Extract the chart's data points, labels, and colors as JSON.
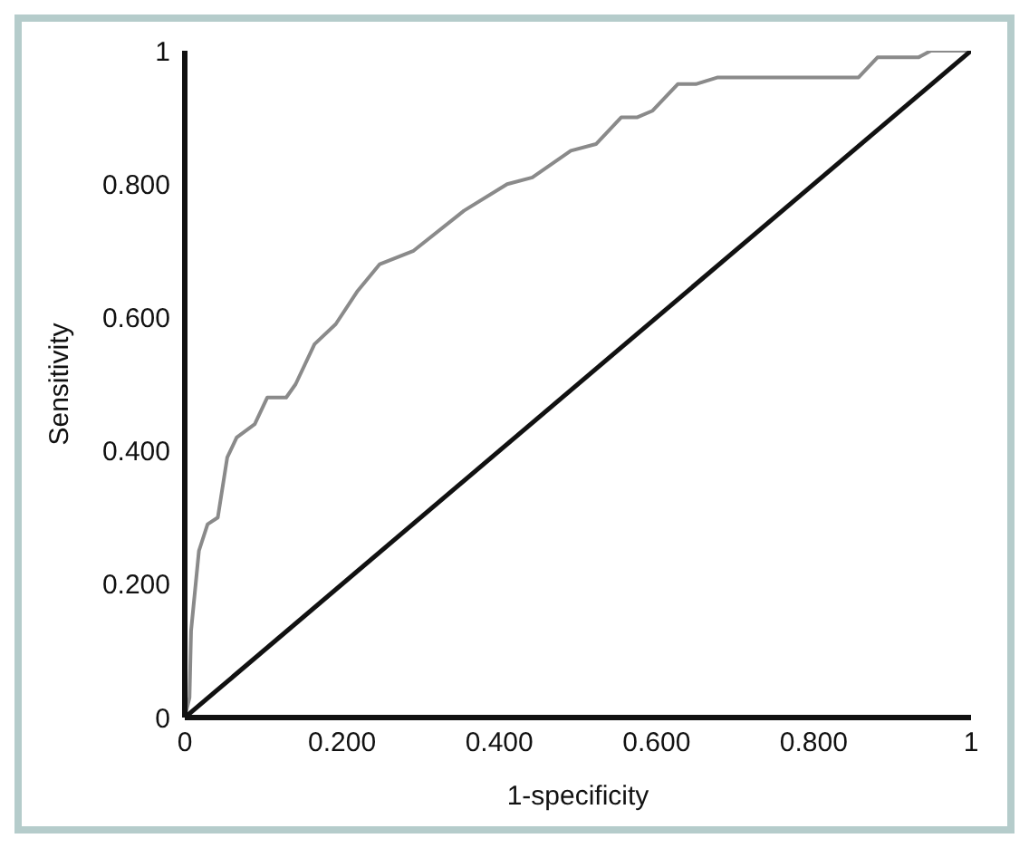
{
  "chart_data": {
    "type": "line",
    "xlabel": "1-specificity",
    "ylabel": "Sensitivity",
    "xlim": [
      0,
      1
    ],
    "ylim": [
      0,
      1
    ],
    "xticks": [
      0,
      {
        "value": 0.2,
        "label": "0.200"
      },
      {
        "value": 0.4,
        "label": "0.400"
      },
      {
        "value": 0.6,
        "label": "0.600"
      },
      {
        "value": 0.8,
        "label": "0.800"
      },
      1
    ],
    "yticks": [
      0,
      {
        "value": 0.2,
        "label": "0.200"
      },
      {
        "value": 0.4,
        "label": "0.400"
      },
      {
        "value": 0.6,
        "label": "0.600"
      },
      {
        "value": 0.8,
        "label": "0.800"
      },
      1
    ],
    "grid": false,
    "legend": false,
    "marker": "none",
    "line_style": "solid",
    "series": [
      {
        "color": "#8a8a8a",
        "x": [
          0,
          0.006,
          0.008,
          0.018,
          0.029,
          0.042,
          0.054,
          0.066,
          0.089,
          0.105,
          0.129,
          0.141,
          0.165,
          0.192,
          0.22,
          0.248,
          0.291,
          0.355,
          0.41,
          0.442,
          0.491,
          0.523,
          0.555,
          0.575,
          0.595,
          0.627,
          0.65,
          0.678,
          0.857,
          0.881,
          0.933,
          0.949,
          1
        ],
        "values": [
          0,
          0.03,
          0.13,
          0.25,
          0.29,
          0.3,
          0.39,
          0.42,
          0.44,
          0.48,
          0.48,
          0.5,
          0.56,
          0.59,
          0.64,
          0.68,
          0.7,
          0.76,
          0.8,
          0.81,
          0.85,
          0.86,
          0.9,
          0.9,
          0.91,
          0.95,
          0.95,
          0.96,
          0.96,
          0.99,
          0.99,
          1,
          1
        ]
      },
      {
        "color": "#111111",
        "x": [
          0,
          1
        ],
        "values": [
          0,
          1
        ]
      }
    ]
  }
}
